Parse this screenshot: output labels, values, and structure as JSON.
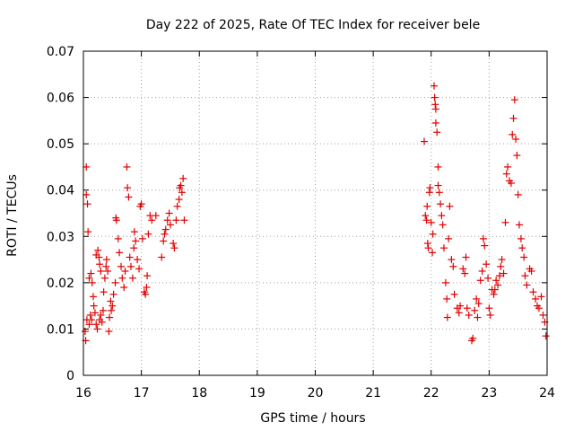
{
  "chart_data": {
    "type": "scatter",
    "title": "Day 222 of 2025, Rate Of TEC Index for receiver bele",
    "xlabel": "GPS time / hours",
    "ylabel": "ROTI / TECUs",
    "xlim": [
      16,
      24
    ],
    "ylim": [
      0,
      0.07
    ],
    "xticks": [
      16,
      17,
      18,
      19,
      20,
      21,
      22,
      23,
      24
    ],
    "xtick_labels": [
      "16",
      "17",
      "18",
      "19",
      "20",
      "21",
      "22",
      "23",
      "24"
    ],
    "yticks": [
      0,
      0.01,
      0.02,
      0.03,
      0.04,
      0.05,
      0.06,
      0.07
    ],
    "ytick_labels": [
      "0",
      "0.01",
      "0.02",
      "0.03",
      "0.04",
      "0.05",
      "0.06",
      "0.07"
    ],
    "grid": true,
    "marker": "+",
    "color": "#e00000",
    "series": [
      {
        "name": "ROTI",
        "points": [
          [
            16.05,
            0.045
          ],
          [
            16.05,
            0.039
          ],
          [
            16.07,
            0.037
          ],
          [
            16.08,
            0.031
          ],
          [
            16.03,
            0.0095
          ],
          [
            16.04,
            0.0075
          ],
          [
            16.06,
            0.012
          ],
          [
            16.1,
            0.011
          ],
          [
            16.12,
            0.013
          ],
          [
            16.14,
            0.012
          ],
          [
            16.1,
            0.021
          ],
          [
            16.13,
            0.022
          ],
          [
            16.15,
            0.02
          ],
          [
            16.17,
            0.017
          ],
          [
            16.18,
            0.015
          ],
          [
            16.2,
            0.0135
          ],
          [
            16.22,
            0.011
          ],
          [
            16.22,
            0.026
          ],
          [
            16.25,
            0.027
          ],
          [
            16.27,
            0.0255
          ],
          [
            16.28,
            0.024
          ],
          [
            16.3,
            0.0225
          ],
          [
            16.24,
            0.01
          ],
          [
            16.28,
            0.012
          ],
          [
            16.3,
            0.013
          ],
          [
            16.32,
            0.0115
          ],
          [
            16.34,
            0.014
          ],
          [
            16.35,
            0.018
          ],
          [
            16.37,
            0.021
          ],
          [
            16.39,
            0.0235
          ],
          [
            16.4,
            0.025
          ],
          [
            16.42,
            0.0225
          ],
          [
            16.44,
            0.0095
          ],
          [
            16.45,
            0.0125
          ],
          [
            16.47,
            0.016
          ],
          [
            16.48,
            0.014
          ],
          [
            16.5,
            0.015
          ],
          [
            16.52,
            0.0175
          ],
          [
            16.55,
            0.02
          ],
          [
            16.56,
            0.034
          ],
          [
            16.57,
            0.0335
          ],
          [
            16.6,
            0.0295
          ],
          [
            16.62,
            0.0265
          ],
          [
            16.65,
            0.0235
          ],
          [
            16.67,
            0.021
          ],
          [
            16.7,
            0.019
          ],
          [
            16.72,
            0.0225
          ],
          [
            16.75,
            0.045
          ],
          [
            16.76,
            0.0405
          ],
          [
            16.78,
            0.0385
          ],
          [
            16.8,
            0.0255
          ],
          [
            16.82,
            0.0235
          ],
          [
            16.85,
            0.021
          ],
          [
            16.87,
            0.0275
          ],
          [
            16.88,
            0.031
          ],
          [
            16.9,
            0.029
          ],
          [
            16.93,
            0.025
          ],
          [
            16.96,
            0.023
          ],
          [
            16.98,
            0.0365
          ],
          [
            17.0,
            0.037
          ],
          [
            17.02,
            0.0295
          ],
          [
            17.05,
            0.018
          ],
          [
            17.07,
            0.0175
          ],
          [
            17.09,
            0.019
          ],
          [
            17.1,
            0.0215
          ],
          [
            17.12,
            0.0305
          ],
          [
            17.15,
            0.0345
          ],
          [
            17.18,
            0.0335
          ],
          [
            17.25,
            0.0345
          ],
          [
            17.35,
            0.0255
          ],
          [
            17.38,
            0.029
          ],
          [
            17.4,
            0.0305
          ],
          [
            17.42,
            0.0315
          ],
          [
            17.45,
            0.0335
          ],
          [
            17.48,
            0.035
          ],
          [
            17.5,
            0.0325
          ],
          [
            17.55,
            0.0285
          ],
          [
            17.57,
            0.0275
          ],
          [
            17.6,
            0.0335
          ],
          [
            17.62,
            0.0365
          ],
          [
            17.65,
            0.038
          ],
          [
            17.66,
            0.0405
          ],
          [
            17.68,
            0.041
          ],
          [
            17.7,
            0.0395
          ],
          [
            17.72,
            0.0425
          ],
          [
            17.74,
            0.0335
          ],
          [
            21.88,
            0.0505
          ],
          [
            21.9,
            0.0345
          ],
          [
            21.92,
            0.0335
          ],
          [
            21.93,
            0.0365
          ],
          [
            21.94,
            0.0285
          ],
          [
            21.95,
            0.0275
          ],
          [
            21.97,
            0.0395
          ],
          [
            21.98,
            0.0405
          ],
          [
            22.0,
            0.033
          ],
          [
            22.02,
            0.0265
          ],
          [
            22.03,
            0.0305
          ],
          [
            22.05,
            0.0625
          ],
          [
            22.06,
            0.06
          ],
          [
            22.07,
            0.0585
          ],
          [
            22.08,
            0.0575
          ],
          [
            22.08,
            0.0545
          ],
          [
            22.1,
            0.0525
          ],
          [
            22.12,
            0.045
          ],
          [
            22.12,
            0.041
          ],
          [
            22.14,
            0.0395
          ],
          [
            22.16,
            0.037
          ],
          [
            22.18,
            0.0345
          ],
          [
            22.2,
            0.0325
          ],
          [
            22.22,
            0.0275
          ],
          [
            22.25,
            0.02
          ],
          [
            22.27,
            0.0165
          ],
          [
            22.28,
            0.0125
          ],
          [
            22.3,
            0.0295
          ],
          [
            22.32,
            0.0365
          ],
          [
            22.35,
            0.025
          ],
          [
            22.38,
            0.0235
          ],
          [
            22.4,
            0.0175
          ],
          [
            22.45,
            0.0145
          ],
          [
            22.48,
            0.0135
          ],
          [
            22.5,
            0.015
          ],
          [
            22.55,
            0.023
          ],
          [
            22.58,
            0.022
          ],
          [
            22.6,
            0.0255
          ],
          [
            22.62,
            0.0145
          ],
          [
            22.65,
            0.013
          ],
          [
            22.7,
            0.0075
          ],
          [
            22.72,
            0.008
          ],
          [
            22.75,
            0.014
          ],
          [
            22.78,
            0.0165
          ],
          [
            22.8,
            0.0125
          ],
          [
            22.82,
            0.0155
          ],
          [
            22.85,
            0.0205
          ],
          [
            22.88,
            0.0225
          ],
          [
            22.9,
            0.0295
          ],
          [
            22.92,
            0.028
          ],
          [
            22.95,
            0.024
          ],
          [
            22.98,
            0.021
          ],
          [
            23.0,
            0.0145
          ],
          [
            23.02,
            0.013
          ],
          [
            23.05,
            0.0185
          ],
          [
            23.08,
            0.0175
          ],
          [
            23.1,
            0.0185
          ],
          [
            23.12,
            0.0205
          ],
          [
            23.15,
            0.0195
          ],
          [
            23.18,
            0.0215
          ],
          [
            23.2,
            0.0235
          ],
          [
            23.22,
            0.025
          ],
          [
            23.25,
            0.022
          ],
          [
            23.28,
            0.033
          ],
          [
            23.3,
            0.0435
          ],
          [
            23.32,
            0.045
          ],
          [
            23.35,
            0.042
          ],
          [
            23.38,
            0.0415
          ],
          [
            23.4,
            0.052
          ],
          [
            23.42,
            0.0555
          ],
          [
            23.44,
            0.0595
          ],
          [
            23.46,
            0.051
          ],
          [
            23.48,
            0.0475
          ],
          [
            23.5,
            0.039
          ],
          [
            23.52,
            0.0325
          ],
          [
            23.55,
            0.0295
          ],
          [
            23.57,
            0.0275
          ],
          [
            23.6,
            0.0255
          ],
          [
            23.62,
            0.0215
          ],
          [
            23.65,
            0.0195
          ],
          [
            23.7,
            0.023
          ],
          [
            23.73,
            0.0225
          ],
          [
            23.76,
            0.018
          ],
          [
            23.8,
            0.0165
          ],
          [
            23.83,
            0.015
          ],
          [
            23.86,
            0.0145
          ],
          [
            23.9,
            0.017
          ],
          [
            23.93,
            0.013
          ],
          [
            23.96,
            0.0115
          ],
          [
            23.98,
            0.0085
          ]
        ]
      }
    ]
  }
}
